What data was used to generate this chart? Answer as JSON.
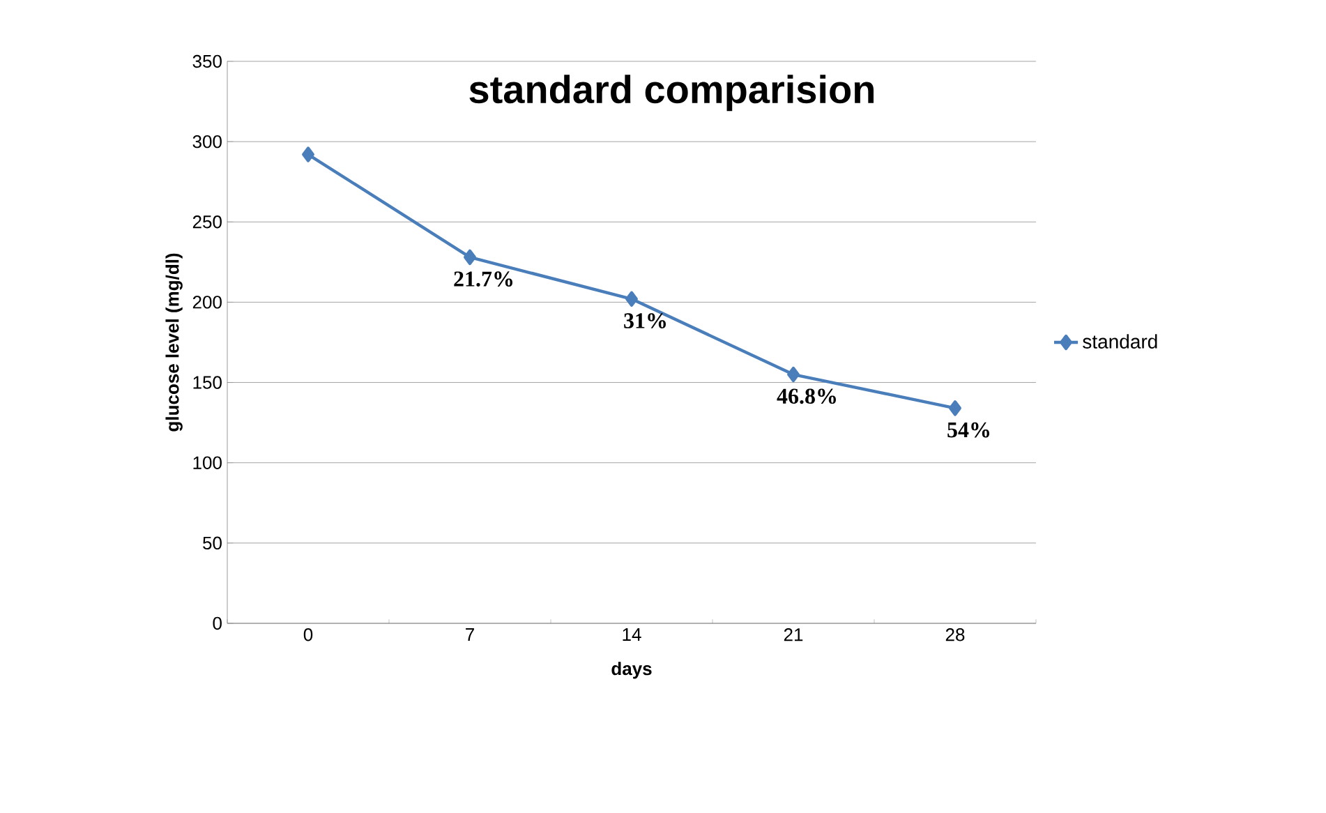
{
  "chart_data": {
    "type": "line",
    "title": "standard comparision",
    "xlabel": "days",
    "ylabel": "glucose level (mg/dl)",
    "categories": [
      "0",
      "7",
      "14",
      "21",
      "28"
    ],
    "series": [
      {
        "name": "standard",
        "color": "#4a7ebb",
        "values": [
          292,
          228,
          202,
          155,
          134
        ]
      }
    ],
    "ylim": [
      0,
      350
    ],
    "yticks": [
      0,
      50,
      100,
      150,
      200,
      250,
      300,
      350
    ],
    "grid": "y",
    "legend": "right",
    "marker": "diamond",
    "line_style": "solid",
    "annotations": [
      {
        "text": "21.7%",
        "x": "7",
        "y": 228
      },
      {
        "text": "31%",
        "x": "14",
        "y": 202
      },
      {
        "text": "46.8%",
        "x": "21",
        "y": 155
      },
      {
        "text": "54%",
        "x": "28",
        "y": 134
      }
    ]
  }
}
